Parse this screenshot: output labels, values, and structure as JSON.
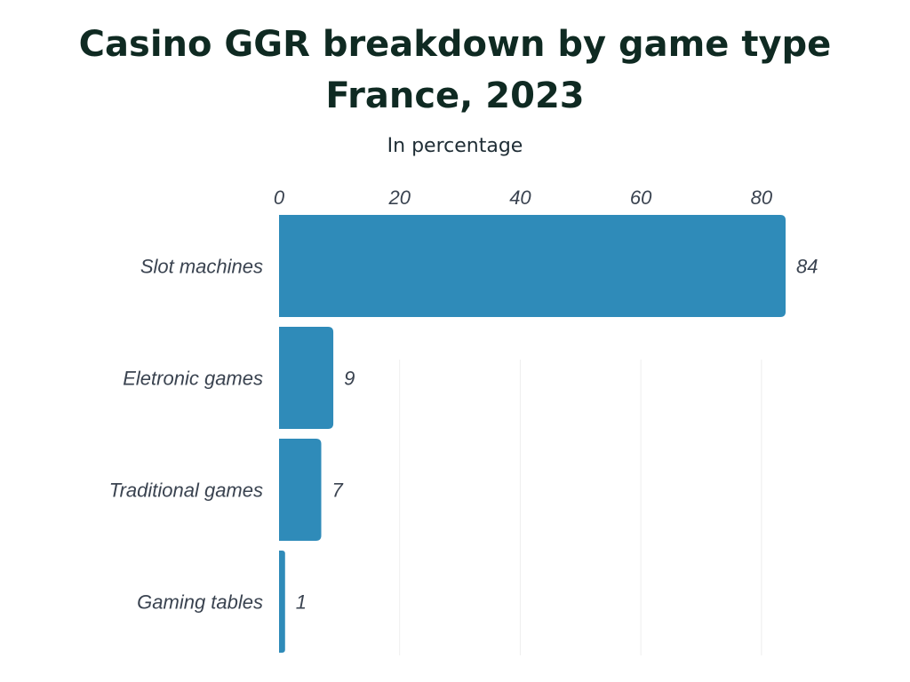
{
  "chart_data": {
    "type": "bar",
    "orientation": "horizontal",
    "title": [
      "Casino GGR breakdown by game type",
      "France, 2023"
    ],
    "subtitle": "In percentage",
    "categories": [
      "Slot machines",
      "Eletronic games",
      "Traditional games",
      "Gaming tables"
    ],
    "values": [
      84,
      9,
      7,
      1
    ],
    "x_ticks": [
      0,
      20,
      40,
      60,
      80
    ],
    "xlim": [
      0,
      84
    ],
    "axis_position": "top",
    "grid": true,
    "colors": {
      "bar": "#2f8bb9",
      "grid": "#eeeeee",
      "title": "#0f2a22"
    }
  }
}
